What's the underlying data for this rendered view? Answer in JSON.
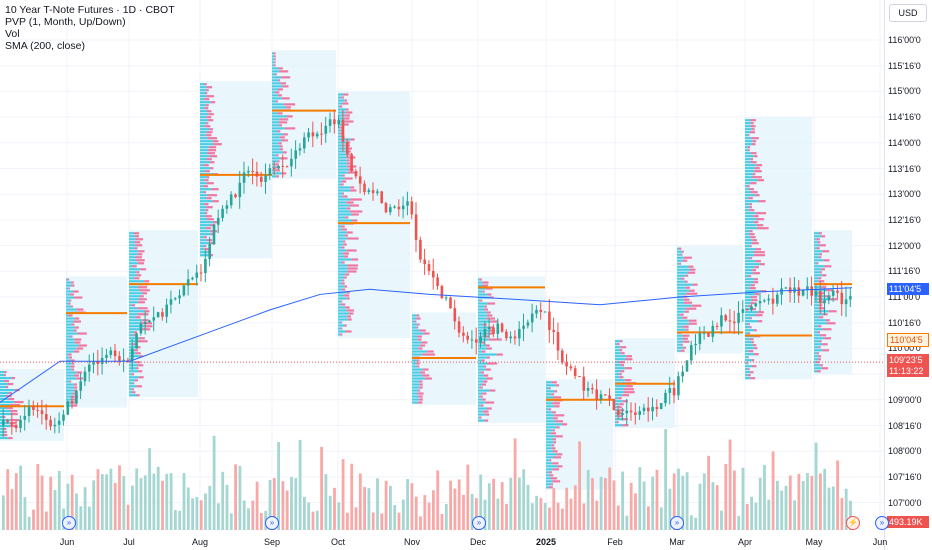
{
  "legend": {
    "title": "10 Year T-Note Futures · 1D · CBOT",
    "indicators": [
      "PVP (1, Month, Up/Down)",
      "Vol",
      "SMA (200, close)"
    ]
  },
  "currency_button": "USD",
  "price_axis": {
    "ticks": [
      "116'00'0",
      "115'16'0",
      "115'00'0",
      "114'16'0",
      "114'00'0",
      "113'16'0",
      "113'00'0",
      "112'16'0",
      "112'00'0",
      "111'16'0",
      "111'00'0",
      "110'16'0",
      "110'00'0",
      "109'16'0",
      "109'00'0",
      "108'16'0",
      "108'00'0",
      "107'16'0",
      "107'00'0"
    ]
  },
  "time_axis": {
    "labels": [
      "Jun",
      "Jul",
      "Aug",
      "Sep",
      "Oct",
      "Nov",
      "Dec",
      "2025",
      "Feb",
      "Mar",
      "Apr",
      "May",
      "Jun"
    ]
  },
  "badges": {
    "sma_value": "111'04'5",
    "poc_value": "110'04'5",
    "last_price": "109'23'5",
    "countdown": "11:13:22",
    "volume_value": "493.19K"
  },
  "colors": {
    "up": "#26a69a",
    "down": "#ef5350",
    "sma": "#2962ff",
    "poc": "#f57c00",
    "profile_up": "#2ec4e0",
    "profile_down": "#f06292",
    "profile_bg": "#e1f4fb",
    "vol_up": "#a5d6d2",
    "vol_down": "#f7a9a7"
  },
  "chart_data": {
    "type": "candlestick",
    "title": "10 Year T-Note Futures · 1D · CBOT",
    "price_range": [
      106.875,
      116.25
    ],
    "sma_last": "111'04'5",
    "last_price": "109'23'5",
    "monthly_poc": [
      "108'28",
      "110'22",
      "111'08",
      "113'12",
      "114'20",
      "112'14",
      "109'26",
      "111'06",
      "109'00",
      "109'10",
      "110'10",
      "110'08",
      "111'08",
      "110'04"
    ],
    "monthly_closes": [
      108.9,
      109.9,
      111.2,
      113.9,
      114.5,
      112.1,
      109.8,
      110.6,
      108.6,
      109.4,
      110.9,
      111.0,
      110.6,
      109.7
    ],
    "volume_last": "493.19K"
  }
}
